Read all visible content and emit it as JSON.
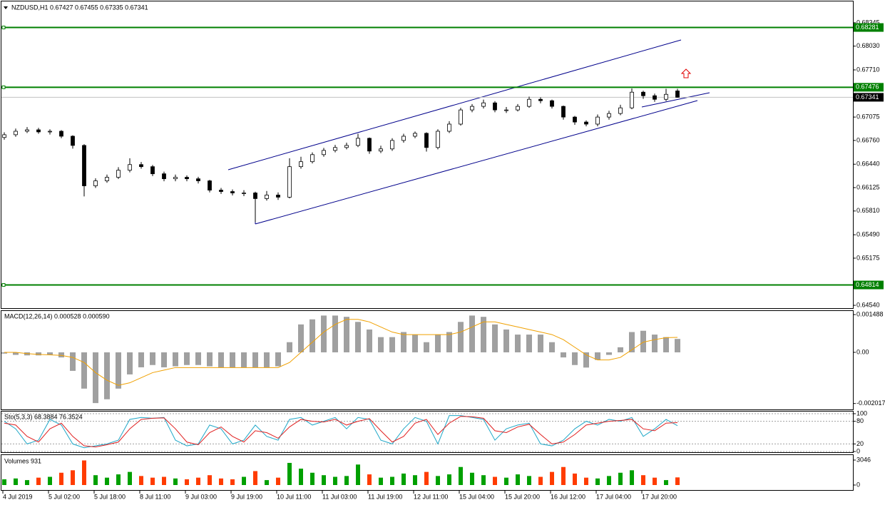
{
  "chart_data": [
    {
      "type": "candlestick",
      "title": "NZDUSD,H1  0.67427 0.67455 0.67335 0.67341",
      "open": [
        0.668,
        0.66837,
        0.66884,
        0.66903,
        0.66875,
        0.66884,
        0.66817,
        0.66693,
        0.66149,
        0.66216,
        0.66264,
        0.66359,
        0.66435,
        0.66407,
        0.66311,
        0.66244,
        0.66264,
        0.66244,
        0.66216,
        0.66091,
        0.66072,
        0.66053,
        0.66053,
        0.65977,
        0.66025,
        0.65996,
        0.66407,
        0.66474,
        0.66569,
        0.66626,
        0.66665,
        0.66693,
        0.66789,
        0.66617,
        0.66646,
        0.6676,
        0.66817,
        0.66856,
        0.66665,
        0.66884,
        0.6698,
        0.67171,
        0.67219,
        0.67266,
        0.67171,
        0.67171,
        0.67219,
        0.67314,
        0.67295,
        0.67219,
        0.67075,
        0.67008,
        0.6698,
        0.67075,
        0.67123,
        0.67199,
        0.6741,
        0.67362,
        0.67314,
        0.67427
      ],
      "high": [
        0.6687,
        0.6692,
        0.6694,
        0.6693,
        0.6691,
        0.669,
        0.6683,
        0.6671,
        0.6625,
        0.663,
        0.664,
        0.6652,
        0.6647,
        0.6643,
        0.6634,
        0.663,
        0.6629,
        0.6627,
        0.6623,
        0.6612,
        0.661,
        0.6609,
        0.6607,
        0.6608,
        0.6606,
        0.6652,
        0.6654,
        0.666,
        0.6666,
        0.667,
        0.6673,
        0.6685,
        0.668,
        0.6669,
        0.6679,
        0.6685,
        0.6688,
        0.6687,
        0.6691,
        0.6702,
        0.672,
        0.6725,
        0.6731,
        0.6729,
        0.6721,
        0.6725,
        0.6735,
        0.6734,
        0.6731,
        0.6723,
        0.6709,
        0.6703,
        0.6711,
        0.6716,
        0.6724,
        0.6746,
        0.6743,
        0.6739,
        0.67455,
        0.67455
      ],
      "low": [
        0.6677,
        0.6681,
        0.6686,
        0.6685,
        0.6684,
        0.6679,
        0.6665,
        0.66006,
        0.6612,
        0.6619,
        0.6624,
        0.6633,
        0.6638,
        0.6628,
        0.6621,
        0.6621,
        0.6621,
        0.6618,
        0.6606,
        0.6604,
        0.6602,
        0.6601,
        0.65662,
        0.6595,
        0.6596,
        0.6598,
        0.6638,
        0.6645,
        0.6654,
        0.666,
        0.6664,
        0.6667,
        0.6658,
        0.6659,
        0.6662,
        0.6673,
        0.6679,
        0.6661,
        0.6664,
        0.6686,
        0.6696,
        0.6714,
        0.6719,
        0.6714,
        0.6713,
        0.6715,
        0.672,
        0.6726,
        0.6719,
        0.6704,
        0.6697,
        0.6695,
        0.6695,
        0.6704,
        0.671,
        0.6718,
        0.6732,
        0.6728,
        0.6729,
        0.67335
      ],
      "close": [
        0.66837,
        0.66884,
        0.66903,
        0.66875,
        0.66884,
        0.66817,
        0.66693,
        0.66149,
        0.66216,
        0.66264,
        0.66359,
        0.66435,
        0.66407,
        0.66311,
        0.66244,
        0.66264,
        0.66244,
        0.66216,
        0.66091,
        0.66072,
        0.66053,
        0.66053,
        0.65977,
        0.66025,
        0.65996,
        0.66407,
        0.66474,
        0.66569,
        0.66626,
        0.66665,
        0.66693,
        0.66789,
        0.66617,
        0.66646,
        0.6676,
        0.66817,
        0.66856,
        0.66665,
        0.66884,
        0.6698,
        0.67171,
        0.67219,
        0.67266,
        0.67171,
        0.67171,
        0.67219,
        0.67314,
        0.67295,
        0.67219,
        0.67075,
        0.67008,
        0.6698,
        0.67075,
        0.67123,
        0.67199,
        0.6741,
        0.67362,
        0.67314,
        0.67381,
        0.67341
      ],
      "ylim": [
        0.64502,
        0.68632
      ],
      "yticks": [
        0.68345,
        {
          "value": 0.6803,
          "label": "0.68030"
        },
        {
          "value": 0.6771,
          "label": "0.67710"
        },
        0.67075,
        {
          "value": 0.6676,
          "label": "0.66760"
        },
        {
          "value": 0.6644,
          "label": "0.66440"
        },
        0.66125,
        {
          "value": 0.6581,
          "label": "0.65810"
        },
        {
          "value": 0.6549,
          "label": "0.65490"
        },
        0.65175,
        {
          "value": 0.6454,
          "label": "0.64540"
        }
      ],
      "levels": [
        0.68281,
        0.67476,
        0.64814
      ],
      "level_color": "#008000"
    },
    {
      "type": "bar",
      "title": "MACD(12,26,14) 0.000528 0.000590",
      "series": [
        {
          "color": "#a0a0a0",
          "values": [
            -5e-05,
            -0.0001,
            -0.00012,
            -0.00012,
            -0.0001,
            -0.0002,
            -0.00073,
            -0.00143,
            -0.002,
            -0.00185,
            -0.00143,
            -0.00087,
            -0.00059,
            -0.0005,
            -0.00059,
            -0.00055,
            -0.0005,
            -0.0005,
            -0.00055,
            -0.0006,
            -0.0006,
            -0.0006,
            -0.0006,
            -0.0006,
            -0.00055,
            0.0004,
            0.0011,
            0.0013,
            0.00145,
            0.00145,
            0.0014,
            0.0012,
            0.0009,
            0.0006,
            0.0006,
            0.0008,
            0.0007,
            0.0004,
            0.0007,
            0.0008,
            0.0012,
            0.00145,
            0.0014,
            0.0011,
            0.0009,
            0.0007,
            0.0007,
            0.0007,
            0.0004,
            -0.0002,
            -0.0005,
            -0.0006,
            -0.0003,
            -0.0001,
            0.0002,
            0.0008,
            0.00085,
            0.0007,
            0.0006,
            0.000528
          ]
        },
        {
          "color": "#f0a000",
          "values": [
            0,
            0,
            -5e-05,
            -8e-05,
            -0.0001,
            -0.00012,
            -0.0002,
            -0.0004,
            -0.0008,
            -0.0011,
            -0.0013,
            -0.0012,
            -0.001,
            -0.0008,
            -0.0007,
            -0.0006,
            -0.0006,
            -0.0006,
            -0.0006,
            -0.0006,
            -0.0006,
            -0.0006,
            -0.0006,
            -0.0006,
            -0.0006,
            -0.0004,
            0,
            0.0004,
            0.0008,
            0.0011,
            0.0013,
            0.0013,
            0.0012,
            0.001,
            0.0008,
            0.0007,
            0.0007,
            0.0007,
            0.0007,
            0.0007,
            0.0008,
            0.001,
            0.0012,
            0.0012,
            0.0011,
            0.001,
            0.0009,
            0.0008,
            0.0007,
            0.0005,
            0.0002,
            -0.0001,
            -0.0003,
            -0.0003,
            -0.0002,
            0.0001,
            0.0004,
            0.0005,
            0.00058,
            0.00059
          ]
        }
      ],
      "ylim": [
        -0.00225,
        0.00163
      ],
      "yticks": [
        0.001488,
        {
          "value": 0,
          "label": "0.00"
        },
        -0.002017
      ]
    },
    {
      "type": "line",
      "title": "Sto(5,3,3) 68.3884 76.3524",
      "series": [
        {
          "color": "#20a8c8",
          "values": [
            80,
            60,
            20,
            30,
            85,
            70,
            20,
            10,
            15,
            20,
            30,
            85,
            90,
            88,
            90,
            30,
            15,
            20,
            70,
            60,
            20,
            30,
            70,
            40,
            30,
            85,
            90,
            70,
            80,
            90,
            60,
            90,
            85,
            30,
            20,
            60,
            90,
            80,
            20,
            95,
            95,
            90,
            85,
            30,
            60,
            70,
            75,
            20,
            15,
            30,
            60,
            80,
            70,
            85,
            80,
            90,
            40,
            60,
            85,
            68.3884
          ]
        },
        {
          "color": "#e02020",
          "values": [
            75,
            70,
            40,
            25,
            60,
            75,
            40,
            15,
            12,
            18,
            25,
            60,
            85,
            88,
            89,
            60,
            25,
            18,
            50,
            65,
            40,
            25,
            55,
            50,
            35,
            65,
            85,
            80,
            78,
            85,
            70,
            80,
            87,
            55,
            25,
            40,
            75,
            85,
            45,
            75,
            93,
            92,
            88,
            55,
            50,
            65,
            72,
            45,
            20,
            25,
            45,
            70,
            75,
            80,
            82,
            85,
            60,
            55,
            75,
            76.3524
          ]
        }
      ],
      "ylim": [
        0,
        100
      ],
      "yticks": [
        100,
        80,
        20,
        0
      ]
    },
    {
      "type": "volume",
      "title": "Volumes 931",
      "categories": [
        "4 Jul 2019",
        null,
        null,
        null,
        "5 Jul 02:00",
        null,
        null,
        null,
        "5 Jul 18:00",
        null,
        null,
        null,
        "8 Jul 11:00",
        null,
        null,
        null,
        "9 Jul 03:00",
        null,
        null,
        null,
        "9 Jul 19:00",
        null,
        null,
        null,
        "10 Jul 11:00",
        null,
        null,
        null,
        "11 Jul 03:00",
        null,
        null,
        null,
        "11 Jul 19:00",
        null,
        null,
        null,
        "12 Jul 11:00",
        null,
        null,
        null,
        "15 Jul 04:00",
        null,
        null,
        null,
        "15 Jul 20:00",
        null,
        null,
        null,
        "16 Jul 12:00",
        null,
        null,
        null,
        "17 Jul 04:00",
        null,
        null,
        null,
        "17 Jul 20:00",
        null,
        null,
        null
      ],
      "values": [
        700,
        800,
        600,
        900,
        1000,
        1500,
        1800,
        3000,
        1200,
        900,
        1300,
        1600,
        1100,
        900,
        1000,
        800,
        700,
        900,
        1200,
        800,
        700,
        1000,
        1700,
        600,
        900,
        2700,
        2000,
        1500,
        1200,
        1000,
        1100,
        2500,
        1300,
        900,
        1000,
        1400,
        1200,
        1600,
        1100,
        1300,
        2200,
        1500,
        1200,
        1000,
        900,
        1300,
        1100,
        1000,
        1600,
        2200,
        1400,
        900,
        800,
        1100,
        1500,
        1800,
        1200,
        900,
        600,
        931
      ],
      "up_color": "#00a000",
      "down_color": "#ff3c00",
      "ylim": [
        0,
        3655
      ],
      "yticks": [
        3046,
        0
      ]
    }
  ]
}
